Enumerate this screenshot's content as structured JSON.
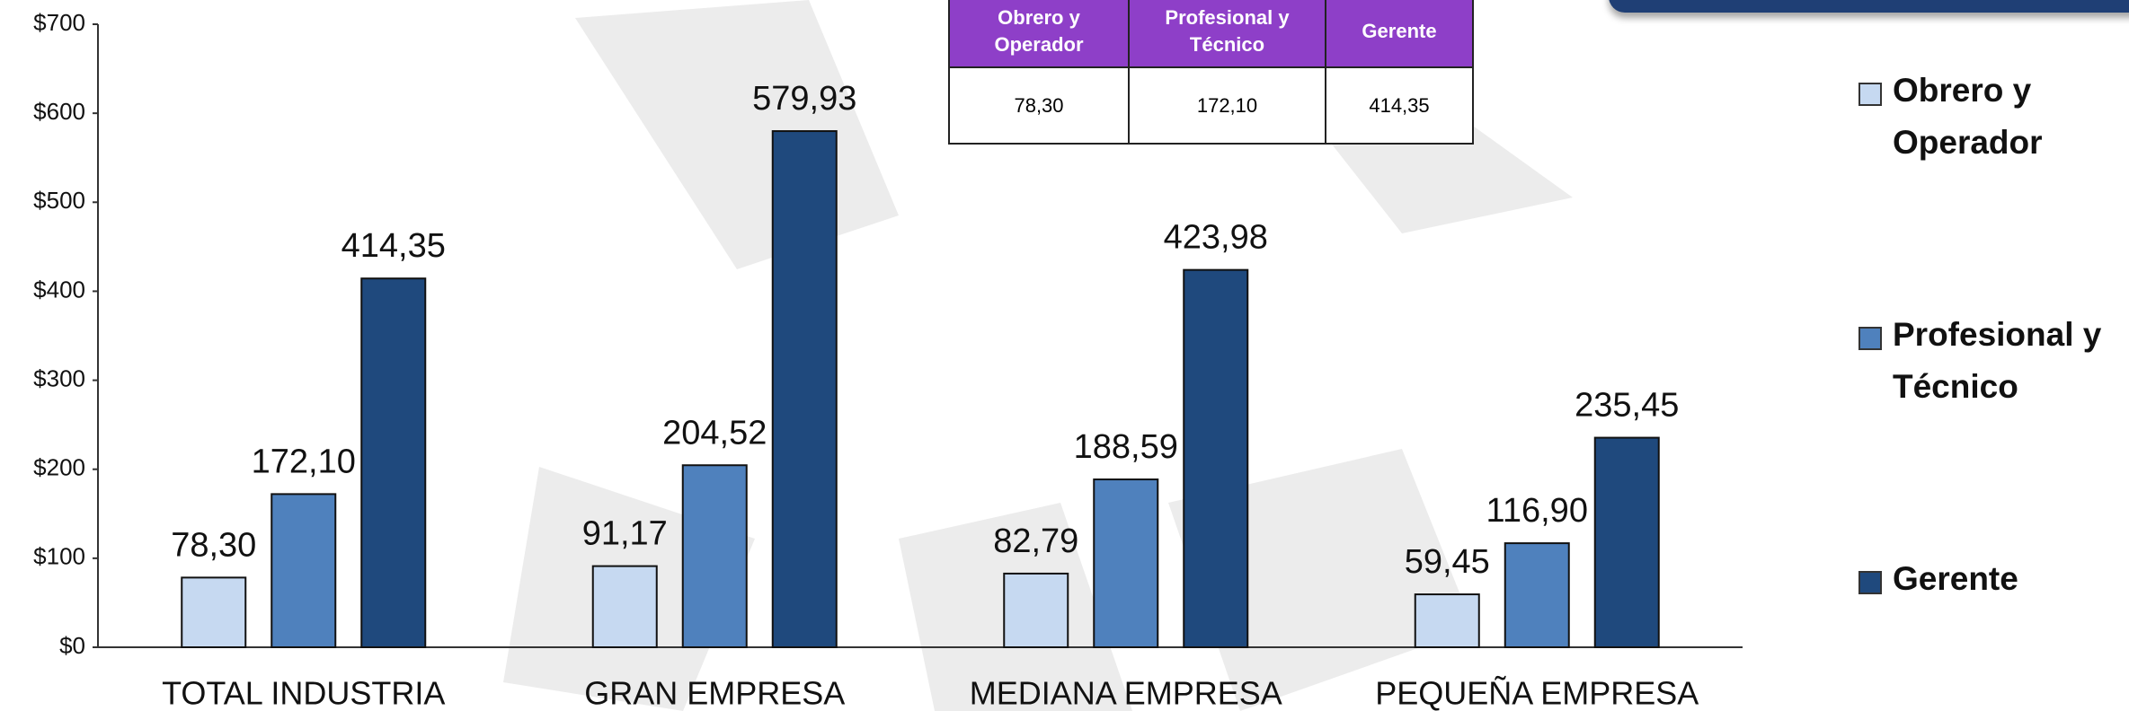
{
  "chart_data": {
    "type": "bar",
    "categories": [
      "TOTAL INDUSTRIA",
      "GRAN EMPRESA",
      "MEDIANA EMPRESA",
      "PEQUEÑA EMPRESA"
    ],
    "series": [
      {
        "name": "Obrero y Operador",
        "color": "#c6d9f1",
        "values": [
          78.3,
          91.17,
          82.79,
          59.45
        ],
        "value_labels": [
          "78,30",
          "91,17",
          "82,79",
          "59,45"
        ]
      },
      {
        "name": "Profesional y Técnico",
        "color": "#4f81bd",
        "values": [
          172.1,
          204.52,
          188.59,
          116.9
        ],
        "value_labels": [
          "172,10",
          "204,52",
          "188,59",
          "116,90"
        ]
      },
      {
        "name": "Gerente",
        "color": "#1f497d",
        "values": [
          414.35,
          579.93,
          423.98,
          235.45
        ],
        "value_labels": [
          "414,35",
          "579,93",
          "423,98",
          "235,45"
        ]
      }
    ],
    "ylim": [
      0,
      700
    ],
    "yticks": [
      {
        "value": 0,
        "label": "$0"
      },
      {
        "value": 100,
        "label": "$100"
      },
      {
        "value": 200,
        "label": "$200"
      },
      {
        "value": 300,
        "label": "$300"
      },
      {
        "value": 400,
        "label": "$400"
      },
      {
        "value": 500,
        "label": "$500"
      },
      {
        "value": 600,
        "label": "$600"
      },
      {
        "value": 700,
        "label": "$700"
      }
    ],
    "grid": false,
    "legend": "right"
  },
  "table": {
    "headers": [
      "Obrero y Operador",
      "Profesional y Técnico",
      "Gerente"
    ],
    "rows": [
      [
        "78,30",
        "172,10",
        "414,35"
      ]
    ]
  }
}
